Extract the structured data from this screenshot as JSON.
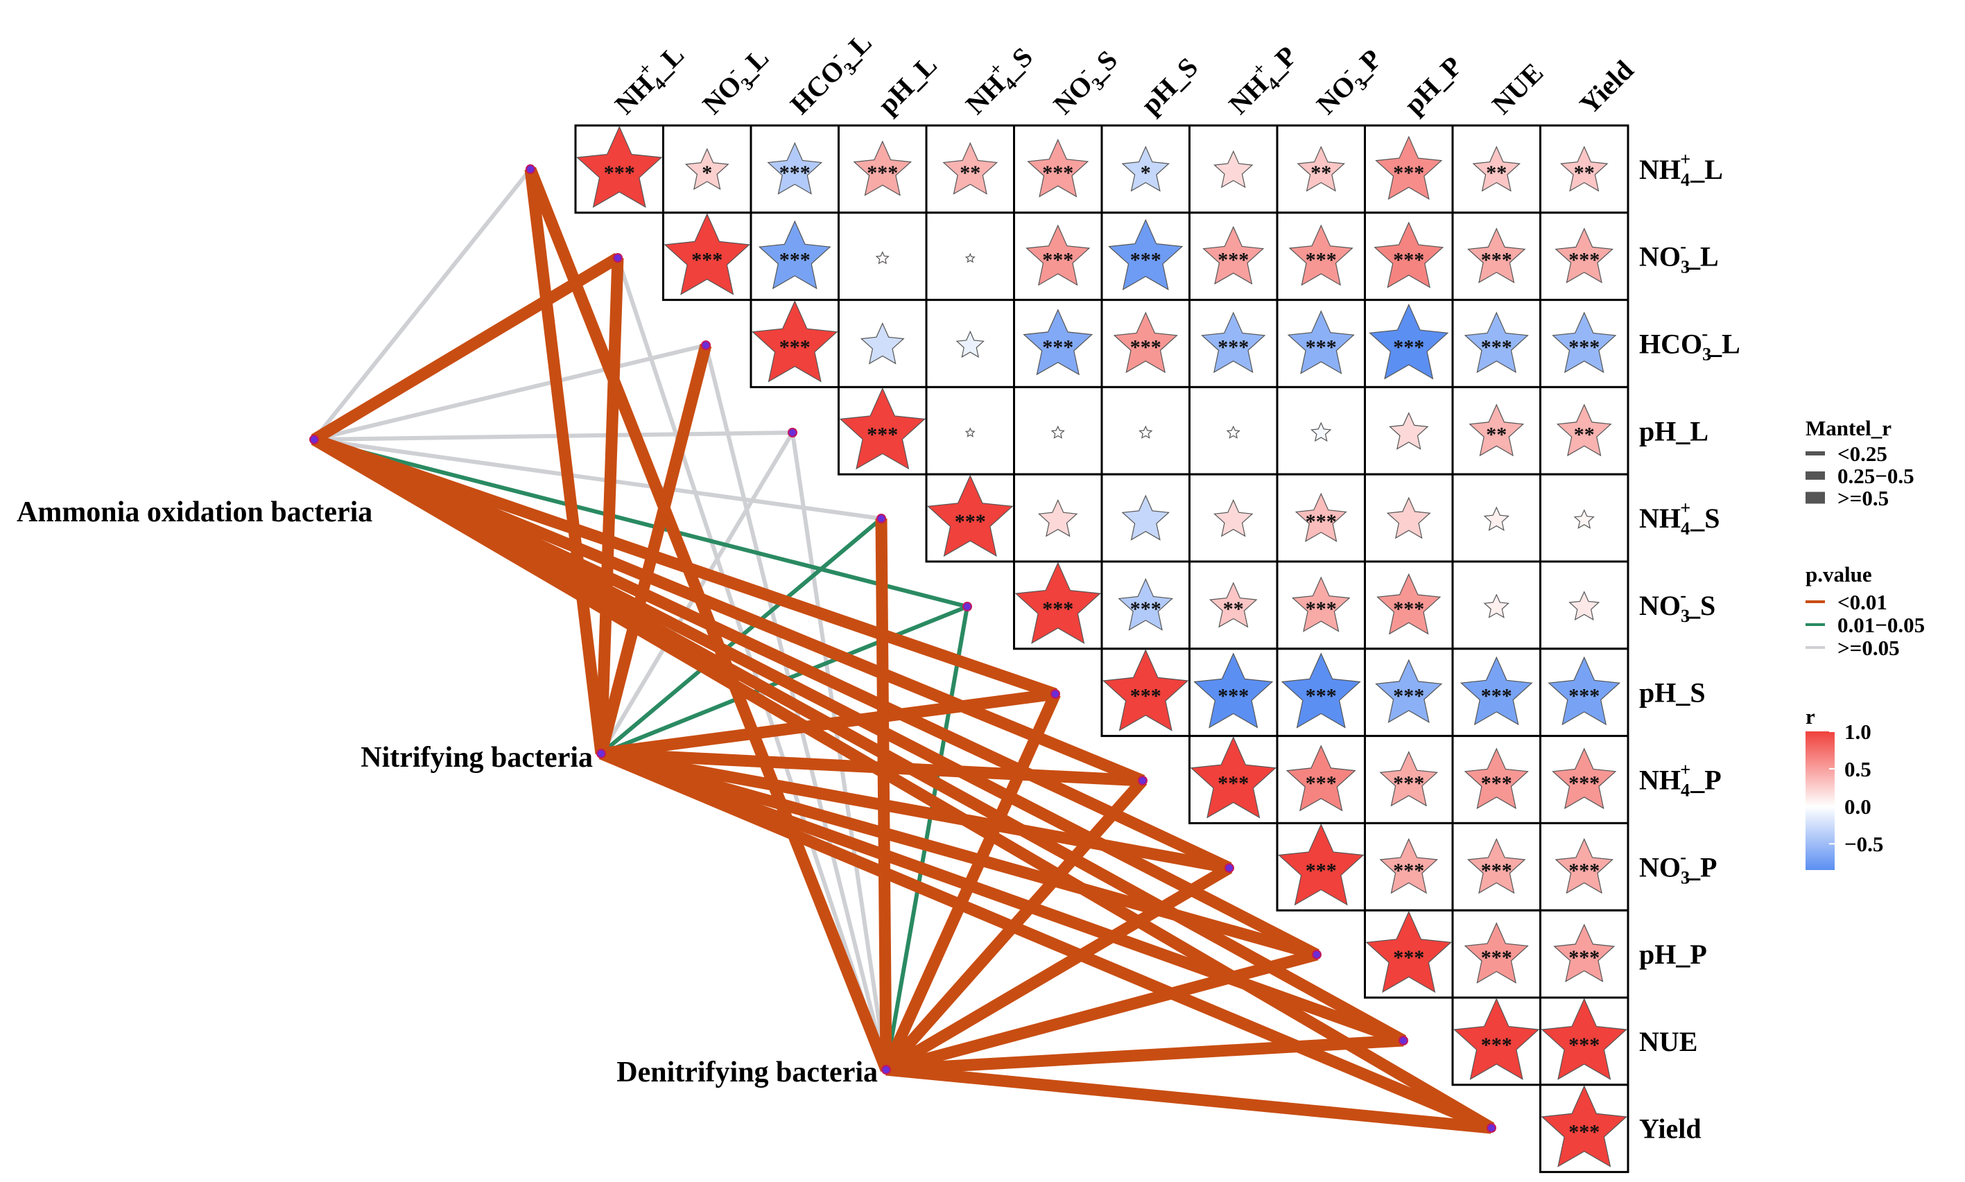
{
  "chart_data": {
    "type": "heatmap",
    "subtype": "mantel-test correlation network",
    "variables": [
      "NH4+_L",
      "NO3-_L",
      "HCO3-_L",
      "pH_L",
      "NH4+_S",
      "NO3-_S",
      "pH_S",
      "NH4+_P",
      "NO3-_P",
      "pH_P",
      "NUE",
      "Yield"
    ],
    "variable_labels": [
      {
        "base": "NH",
        "sub": "4",
        "sup": "+",
        "suffix": "_L"
      },
      {
        "base": "NO",
        "sub": "3",
        "sup": "-",
        "suffix": "_L"
      },
      {
        "base": "HCO",
        "sub": "3",
        "sup": "-",
        "suffix": "_L"
      },
      {
        "base": "pH",
        "sub": "",
        "sup": "",
        "suffix": "_L"
      },
      {
        "base": "NH",
        "sub": "4",
        "sup": "+",
        "suffix": "_S"
      },
      {
        "base": "NO",
        "sub": "3",
        "sup": "-",
        "suffix": "_S"
      },
      {
        "base": "pH",
        "sub": "",
        "sup": "",
        "suffix": "_S"
      },
      {
        "base": "NH",
        "sub": "4",
        "sup": "+",
        "suffix": "_P"
      },
      {
        "base": "NO",
        "sub": "3",
        "sup": "-",
        "suffix": "_P"
      },
      {
        "base": "pH",
        "sub": "",
        "sup": "",
        "suffix": "_P"
      },
      {
        "base": "NUE",
        "sub": "",
        "sup": "",
        "suffix": ""
      },
      {
        "base": "Yield",
        "sub": "",
        "sup": "",
        "suffix": ""
      }
    ],
    "r_matrix_upper": [
      [
        1.0,
        0.25,
        -0.4,
        0.45,
        0.4,
        0.5,
        -0.3,
        0.2,
        0.3,
        0.6,
        0.3,
        0.3
      ],
      [
        null,
        1.0,
        -0.7,
        0.02,
        0.01,
        0.55,
        -0.75,
        0.5,
        0.55,
        0.65,
        0.45,
        0.45
      ],
      [
        null,
        null,
        1.0,
        -0.25,
        -0.1,
        -0.65,
        0.55,
        -0.55,
        -0.6,
        -0.85,
        -0.55,
        -0.55
      ],
      [
        null,
        null,
        null,
        1.0,
        0.01,
        0.02,
        0.02,
        0.02,
        -0.05,
        0.2,
        0.4,
        0.4
      ],
      [
        null,
        null,
        null,
        null,
        1.0,
        0.2,
        -0.3,
        0.2,
        0.35,
        0.25,
        0.08,
        0.05
      ],
      [
        null,
        null,
        null,
        null,
        null,
        1.0,
        -0.4,
        0.3,
        0.45,
        0.55,
        0.08,
        0.12
      ],
      [
        null,
        null,
        null,
        null,
        null,
        null,
        1.0,
        -0.85,
        -0.85,
        -0.6,
        -0.7,
        -0.7
      ],
      [
        null,
        null,
        null,
        null,
        null,
        null,
        null,
        1.0,
        0.65,
        0.45,
        0.55,
        0.55
      ],
      [
        null,
        null,
        null,
        null,
        null,
        null,
        null,
        null,
        1.0,
        0.45,
        0.45,
        0.45
      ],
      [
        null,
        null,
        null,
        null,
        null,
        null,
        null,
        null,
        null,
        1.0,
        0.55,
        0.5
      ],
      [
        null,
        null,
        null,
        null,
        null,
        null,
        null,
        null,
        null,
        null,
        1.0,
        1.0
      ],
      [
        null,
        null,
        null,
        null,
        null,
        null,
        null,
        null,
        null,
        null,
        null,
        1.0
      ]
    ],
    "significance_upper": [
      [
        "***",
        "*",
        "***",
        "***",
        "**",
        "***",
        "*",
        "",
        "**",
        "***",
        "**",
        "**"
      ],
      [
        null,
        "***",
        "***",
        "",
        "",
        "***",
        "***",
        "***",
        "***",
        "***",
        "***",
        "***"
      ],
      [
        null,
        null,
        "***",
        "",
        "",
        "***",
        "***",
        "***",
        "***",
        "***",
        "***",
        "***"
      ],
      [
        null,
        null,
        null,
        "***",
        "",
        "",
        "",
        "",
        "",
        "",
        "**",
        "**"
      ],
      [
        null,
        null,
        null,
        null,
        "***",
        "",
        "",
        "",
        "***",
        "",
        "",
        ""
      ],
      [
        null,
        null,
        null,
        null,
        null,
        "***",
        "***",
        "**",
        "***",
        "***",
        "",
        ""
      ],
      [
        null,
        null,
        null,
        null,
        null,
        null,
        "***",
        "***",
        "***",
        "***",
        "***",
        "***"
      ],
      [
        null,
        null,
        null,
        null,
        null,
        null,
        null,
        "***",
        "***",
        "***",
        "***",
        "***"
      ],
      [
        null,
        null,
        null,
        null,
        null,
        null,
        null,
        null,
        "***",
        "***",
        "***",
        "***"
      ],
      [
        null,
        null,
        null,
        null,
        null,
        null,
        null,
        null,
        null,
        "***",
        "***",
        "***"
      ],
      [
        null,
        null,
        null,
        null,
        null,
        null,
        null,
        null,
        null,
        null,
        "***",
        "***"
      ],
      [
        null,
        null,
        null,
        null,
        null,
        null,
        null,
        null,
        null,
        null,
        null,
        "***"
      ]
    ],
    "groups": [
      "Ammonia oxidation bacteria",
      "Nitrifying bacteria",
      "Denitrifying bacteria"
    ],
    "mantel_links": [
      {
        "from": "Ammonia oxidation bacteria",
        "to": "NH4+_L",
        "mantel_r": "<0.25",
        "p": ">=0.05"
      },
      {
        "from": "Ammonia oxidation bacteria",
        "to": "NO3-_L",
        "mantel_r": ">=0.5",
        "p": "<0.01"
      },
      {
        "from": "Ammonia oxidation bacteria",
        "to": "HCO3-_L",
        "mantel_r": "<0.25",
        "p": ">=0.05"
      },
      {
        "from": "Ammonia oxidation bacteria",
        "to": "pH_L",
        "mantel_r": "<0.25",
        "p": ">=0.05"
      },
      {
        "from": "Ammonia oxidation bacteria",
        "to": "NH4+_S",
        "mantel_r": "<0.25",
        "p": ">=0.05"
      },
      {
        "from": "Ammonia oxidation bacteria",
        "to": "NO3-_S",
        "mantel_r": "<0.25",
        "p": "0.01-0.05"
      },
      {
        "from": "Ammonia oxidation bacteria",
        "to": "pH_S",
        "mantel_r": ">=0.5",
        "p": "<0.01"
      },
      {
        "from": "Ammonia oxidation bacteria",
        "to": "NH4+_P",
        "mantel_r": ">=0.5",
        "p": "<0.01"
      },
      {
        "from": "Ammonia oxidation bacteria",
        "to": "NO3-_P",
        "mantel_r": ">=0.5",
        "p": "<0.01"
      },
      {
        "from": "Ammonia oxidation bacteria",
        "to": "pH_P",
        "mantel_r": ">=0.5",
        "p": "<0.01"
      },
      {
        "from": "Ammonia oxidation bacteria",
        "to": "NUE",
        "mantel_r": ">=0.5",
        "p": "<0.01"
      },
      {
        "from": "Ammonia oxidation bacteria",
        "to": "Yield",
        "mantel_r": ">=0.5",
        "p": "<0.01"
      },
      {
        "from": "Nitrifying bacteria",
        "to": "NH4+_L",
        "mantel_r": ">=0.5",
        "p": "<0.01"
      },
      {
        "from": "Nitrifying bacteria",
        "to": "NO3-_L",
        "mantel_r": ">=0.5",
        "p": "<0.01"
      },
      {
        "from": "Nitrifying bacteria",
        "to": "HCO3-_L",
        "mantel_r": ">=0.5",
        "p": "<0.01"
      },
      {
        "from": "Nitrifying bacteria",
        "to": "pH_L",
        "mantel_r": "<0.25",
        "p": ">=0.05"
      },
      {
        "from": "Nitrifying bacteria",
        "to": "NH4+_S",
        "mantel_r": "<0.25",
        "p": "0.01-0.05"
      },
      {
        "from": "Nitrifying bacteria",
        "to": "NO3-_S",
        "mantel_r": "<0.25",
        "p": "0.01-0.05"
      },
      {
        "from": "Nitrifying bacteria",
        "to": "pH_S",
        "mantel_r": ">=0.5",
        "p": "<0.01"
      },
      {
        "from": "Nitrifying bacteria",
        "to": "NH4+_P",
        "mantel_r": ">=0.5",
        "p": "<0.01"
      },
      {
        "from": "Nitrifying bacteria",
        "to": "NO3-_P",
        "mantel_r": ">=0.5",
        "p": "<0.01"
      },
      {
        "from": "Nitrifying bacteria",
        "to": "pH_P",
        "mantel_r": ">=0.5",
        "p": "<0.01"
      },
      {
        "from": "Nitrifying bacteria",
        "to": "NUE",
        "mantel_r": ">=0.5",
        "p": "<0.01"
      },
      {
        "from": "Nitrifying bacteria",
        "to": "Yield",
        "mantel_r": ">=0.5",
        "p": "<0.01"
      },
      {
        "from": "Denitrifying bacteria",
        "to": "NH4+_L",
        "mantel_r": ">=0.5",
        "p": "<0.01"
      },
      {
        "from": "Denitrifying bacteria",
        "to": "NO3-_L",
        "mantel_r": "<0.25",
        "p": ">=0.05"
      },
      {
        "from": "Denitrifying bacteria",
        "to": "HCO3-_L",
        "mantel_r": "<0.25",
        "p": ">=0.05"
      },
      {
        "from": "Denitrifying bacteria",
        "to": "pH_L",
        "mantel_r": "<0.25",
        "p": ">=0.05"
      },
      {
        "from": "Denitrifying bacteria",
        "to": "NH4+_S",
        "mantel_r": ">=0.5",
        "p": "<0.01"
      },
      {
        "from": "Denitrifying bacteria",
        "to": "NO3-_S",
        "mantel_r": "<0.25",
        "p": "0.01-0.05"
      },
      {
        "from": "Denitrifying bacteria",
        "to": "pH_S",
        "mantel_r": ">=0.5",
        "p": "<0.01"
      },
      {
        "from": "Denitrifying bacteria",
        "to": "NH4+_P",
        "mantel_r": ">=0.5",
        "p": "<0.01"
      },
      {
        "from": "Denitrifying bacteria",
        "to": "NO3-_P",
        "mantel_r": ">=0.5",
        "p": "<0.01"
      },
      {
        "from": "Denitrifying bacteria",
        "to": "pH_P",
        "mantel_r": ">=0.5",
        "p": "<0.01"
      },
      {
        "from": "Denitrifying bacteria",
        "to": "NUE",
        "mantel_r": ">=0.5",
        "p": "<0.01"
      },
      {
        "from": "Denitrifying bacteria",
        "to": "Yield",
        "mantel_r": ">=0.5",
        "p": "<0.01"
      }
    ],
    "legend": {
      "mantel_title": "Mantel_r",
      "mantel_items": [
        "<0.25",
        "0.25−0.5",
        ">=0.5"
      ],
      "p_title": "p.value",
      "p_items": [
        {
          "label": "<0.01",
          "color": "#C84D12"
        },
        {
          "label": "0.01−0.05",
          "color": "#2A8A62"
        },
        {
          "label": ">=0.05",
          "color": "#CFD0D4"
        }
      ],
      "r_title": "r",
      "r_ticks": [
        1.0,
        0.5,
        0.0,
        -0.5
      ],
      "r_tick_labels": [
        "1.0",
        "0.5",
        "0.0",
        "−0.5"
      ],
      "r_range": [
        -0.85,
        1.0
      ],
      "colors": {
        "high": "#F0413C",
        "mid": "#FFFFFF",
        "low": "#5B8FF2"
      },
      "position": "right"
    }
  }
}
